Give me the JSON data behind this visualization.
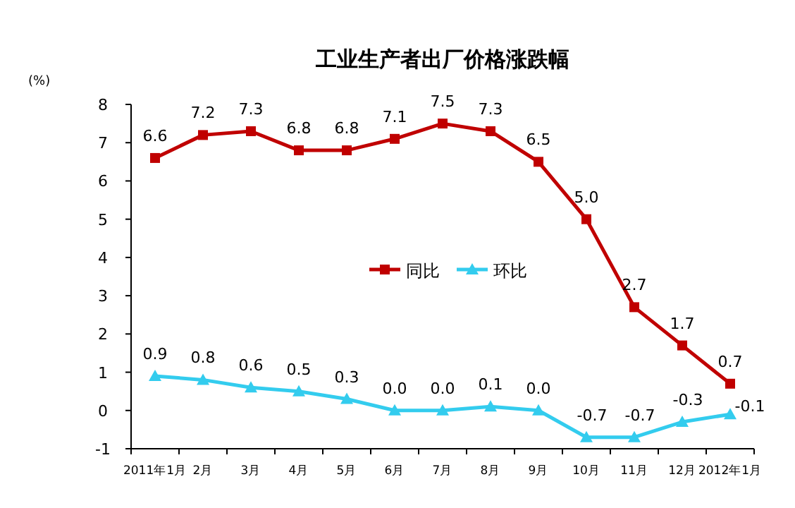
{
  "chart_data": {
    "type": "line",
    "title": "工业生产者出厂价格涨跌幅",
    "ylabel": "(%)",
    "categories": [
      "2011年1月",
      "2月",
      "3月",
      "4月",
      "5月",
      "6月",
      "7月",
      "8月",
      "9月",
      "10月",
      "11月",
      "12月",
      "2012年1月"
    ],
    "series": [
      {
        "name": "同比",
        "color": "#c00000",
        "marker": "square",
        "values": [
          6.6,
          7.2,
          7.3,
          6.8,
          6.8,
          7.1,
          7.5,
          7.3,
          6.5,
          5.0,
          2.7,
          1.7,
          0.7
        ],
        "value_labels": [
          "6.6",
          "7.2",
          "7.3",
          "6.8",
          "6.8",
          "7.1",
          "7.5",
          "7.3",
          "6.5",
          "5.0",
          "2.7",
          "1.7",
          "0.7"
        ]
      },
      {
        "name": "环比",
        "color": "#33ccee",
        "marker": "triangle",
        "values": [
          0.9,
          0.8,
          0.6,
          0.5,
          0.3,
          0.0,
          0.0,
          0.1,
          0.0,
          -0.7,
          -0.7,
          -0.3,
          -0.1
        ],
        "value_labels": [
          "0.9",
          "0.8",
          "0.6",
          "0.5",
          "0.3",
          "0.0",
          "0.0",
          "0.1",
          "0.0",
          "-0.7",
          "-0.7",
          "-0.3",
          "-0.1"
        ]
      }
    ],
    "ylim": [
      -1,
      8
    ],
    "yticks": [
      -1,
      0,
      1,
      2,
      3,
      4,
      5,
      6,
      7,
      8
    ],
    "grid": false,
    "legend": "center"
  }
}
